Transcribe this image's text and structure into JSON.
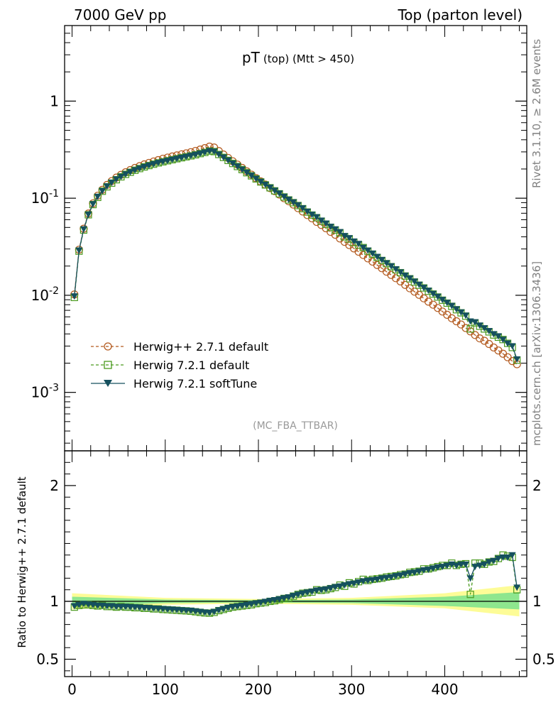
{
  "header": {
    "left_text": "7000 GeV pp",
    "right_text": "Top (parton level)"
  },
  "plot_title": {
    "main": "pT",
    "sub": "(top) (Mtt > 450)"
  },
  "side_labels": {
    "rivet": "Rivet 3.1.10, ≥ 2.6M events",
    "mcplots": "mcplots.cern.ch [arXiv:1306.3436]"
  },
  "analysis_label": "(MC_FBA_TTBAR)",
  "ratio_ylabel": "Ratio to Herwig++ 2.7.1 default",
  "legend": {
    "entries": [
      "Herwig++ 2.7.1 default",
      "Herwig 7.2.1 default",
      "Herwig 7.2.1 softTune"
    ]
  },
  "colors": {
    "herwigpp": "#b35a1f",
    "herwig7": "#4a9a1e",
    "softtune": "#15505e",
    "band_outer": "#fdfc97",
    "band_inner": "#8ee68e"
  },
  "chart_data": [
    {
      "type": "line",
      "yscale": "log",
      "xlim": [
        -8,
        488
      ],
      "ylim": [
        0.00025,
        6
      ],
      "yticks": [
        {
          "value": 1,
          "label": "1"
        },
        {
          "value": 0.1,
          "label": "10^-1"
        },
        {
          "value": 0.01,
          "label": "10^-2"
        },
        {
          "value": 0.001,
          "label": "10^-3"
        }
      ],
      "x": [
        2.5,
        7.5,
        12.5,
        17.5,
        22.5,
        27.5,
        32.5,
        37.5,
        42.5,
        47.5,
        52.5,
        57.5,
        62.5,
        67.5,
        72.5,
        77.5,
        82.5,
        87.5,
        92.5,
        97.5,
        102.5,
        107.5,
        112.5,
        117.5,
        122.5,
        127.5,
        132.5,
        137.5,
        142.5,
        147.5,
        152.5,
        157.5,
        162.5,
        167.5,
        172.5,
        177.5,
        182.5,
        187.5,
        192.5,
        197.5,
        202.5,
        207.5,
        212.5,
        217.5,
        222.5,
        227.5,
        232.5,
        237.5,
        242.5,
        247.5,
        252.5,
        257.5,
        262.5,
        267.5,
        272.5,
        277.5,
        282.5,
        287.5,
        292.5,
        297.5,
        302.5,
        307.5,
        312.5,
        317.5,
        322.5,
        327.5,
        332.5,
        337.5,
        342.5,
        347.5,
        352.5,
        357.5,
        362.5,
        367.5,
        372.5,
        377.5,
        382.5,
        387.5,
        392.5,
        397.5,
        402.5,
        407.5,
        412.5,
        417.5,
        422.5,
        427.5,
        432.5,
        437.5,
        442.5,
        447.5,
        452.5,
        457.5,
        462.5,
        467.5,
        472.5,
        477.5
      ],
      "series": [
        {
          "name": "Herwig++ 2.7.1 default",
          "marker": "open-circle",
          "style": "dashed",
          "values": [
            0.0102,
            0.0295,
            0.0485,
            0.0695,
            0.0885,
            0.106,
            0.122,
            0.137,
            0.15,
            0.163,
            0.174,
            0.185,
            0.195,
            0.205,
            0.214,
            0.223,
            0.231,
            0.239,
            0.247,
            0.255,
            0.262,
            0.269,
            0.276,
            0.283,
            0.29,
            0.298,
            0.307,
            0.317,
            0.328,
            0.34,
            0.333,
            0.306,
            0.282,
            0.26,
            0.24,
            0.222,
            0.205,
            0.189,
            0.175,
            0.161,
            0.149,
            0.138,
            0.127,
            0.118,
            0.109,
            0.1,
            0.093,
            0.086,
            0.079,
            0.073,
            0.067,
            0.062,
            0.057,
            0.053,
            0.049,
            0.045,
            0.042,
            0.0385,
            0.0355,
            0.0329,
            0.0304,
            0.0281,
            0.026,
            0.024,
            0.0222,
            0.0205,
            0.019,
            0.0175,
            0.0162,
            0.015,
            0.0139,
            0.0128,
            0.0118,
            0.0109,
            0.0101,
            0.0093,
            0.0086,
            0.008,
            0.0074,
            0.0068,
            0.0063,
            0.0058,
            0.0054,
            0.005,
            0.0046,
            0.00425,
            0.0039,
            0.0036,
            0.0034,
            0.00315,
            0.0029,
            0.0027,
            0.0025,
            0.0023,
            0.0021,
            0.00195
          ]
        },
        {
          "name": "Herwig 7.2.1 default",
          "marker": "open-square",
          "style": "dashed",
          "values": [
            0.0095,
            0.0285,
            0.047,
            0.0675,
            0.086,
            0.102,
            0.118,
            0.131,
            0.143,
            0.155,
            0.166,
            0.176,
            0.185,
            0.194,
            0.202,
            0.21,
            0.217,
            0.224,
            0.231,
            0.237,
            0.243,
            0.249,
            0.255,
            0.261,
            0.267,
            0.273,
            0.28,
            0.288,
            0.296,
            0.306,
            0.302,
            0.282,
            0.263,
            0.245,
            0.228,
            0.212,
            0.197,
            0.183,
            0.17,
            0.158,
            0.147,
            0.137,
            0.128,
            0.119,
            0.111,
            0.103,
            0.096,
            0.09,
            0.084,
            0.078,
            0.072,
            0.067,
            0.063,
            0.058,
            0.054,
            0.05,
            0.047,
            0.044,
            0.04,
            0.038,
            0.035,
            0.033,
            0.031,
            0.0285,
            0.0265,
            0.0245,
            0.0228,
            0.0212,
            0.0197,
            0.0183,
            0.0171,
            0.0158,
            0.0148,
            0.0137,
            0.0127,
            0.0119,
            0.011,
            0.0103,
            0.0096,
            0.0089,
            0.0083,
            0.0077,
            0.0071,
            0.0066,
            0.0061,
            0.0045,
            0.0052,
            0.0048,
            0.0045,
            0.0042,
            0.0039,
            0.0037,
            0.0035,
            0.0032,
            0.0029,
            0.00215
          ]
        },
        {
          "name": "Herwig 7.2.1 softTune",
          "marker": "filled-triangle-down",
          "style": "solid",
          "values": [
            0.0098,
            0.029,
            0.048,
            0.068,
            0.087,
            0.104,
            0.119,
            0.133,
            0.145,
            0.157,
            0.167,
            0.177,
            0.186,
            0.195,
            0.203,
            0.211,
            0.218,
            0.225,
            0.232,
            0.238,
            0.244,
            0.25,
            0.256,
            0.262,
            0.268,
            0.274,
            0.281,
            0.289,
            0.297,
            0.307,
            0.303,
            0.283,
            0.264,
            0.246,
            0.229,
            0.213,
            0.198,
            0.184,
            0.171,
            0.159,
            0.148,
            0.138,
            0.129,
            0.12,
            0.112,
            0.104,
            0.097,
            0.091,
            0.085,
            0.079,
            0.073,
            0.068,
            0.064,
            0.059,
            0.055,
            0.051,
            0.048,
            0.045,
            0.041,
            0.039,
            0.036,
            0.034,
            0.031,
            0.029,
            0.027,
            0.025,
            0.0232,
            0.0215,
            0.02,
            0.0186,
            0.0173,
            0.016,
            0.015,
            0.0139,
            0.0129,
            0.012,
            0.0112,
            0.0104,
            0.0097,
            0.009,
            0.0084,
            0.0078,
            0.0072,
            0.0067,
            0.0062,
            0.0054,
            0.0053,
            0.0049,
            0.0046,
            0.0043,
            0.004,
            0.0038,
            0.0035,
            0.0032,
            0.003,
            0.0022
          ]
        }
      ]
    },
    {
      "type": "line",
      "ylabel": "Ratio to Herwig++ 2.7.1 default",
      "xlim": [
        -8,
        488
      ],
      "ylim": [
        0.35,
        2.3
      ],
      "xticks": [
        0,
        100,
        200,
        300,
        400
      ],
      "yticks": [
        0.5,
        1,
        2
      ],
      "reference": 1,
      "band_x": [
        0,
        100,
        200,
        300,
        400,
        480
      ],
      "band_outer": [
        [
          0.93,
          1.07
        ],
        [
          0.97,
          1.03
        ],
        [
          0.98,
          1.02
        ],
        [
          0.97,
          1.03
        ],
        [
          0.94,
          1.07
        ],
        [
          0.87,
          1.14
        ]
      ],
      "band_inner": [
        [
          0.96,
          1.04
        ],
        [
          0.985,
          1.015
        ],
        [
          0.99,
          1.01
        ],
        [
          0.985,
          1.015
        ],
        [
          0.96,
          1.04
        ],
        [
          0.93,
          1.08
        ]
      ],
      "x": [
        2.5,
        7.5,
        12.5,
        17.5,
        22.5,
        27.5,
        32.5,
        37.5,
        42.5,
        47.5,
        52.5,
        57.5,
        62.5,
        67.5,
        72.5,
        77.5,
        82.5,
        87.5,
        92.5,
        97.5,
        102.5,
        107.5,
        112.5,
        117.5,
        122.5,
        127.5,
        132.5,
        137.5,
        142.5,
        147.5,
        152.5,
        157.5,
        162.5,
        167.5,
        172.5,
        177.5,
        182.5,
        187.5,
        192.5,
        197.5,
        202.5,
        207.5,
        212.5,
        217.5,
        222.5,
        227.5,
        232.5,
        237.5,
        242.5,
        247.5,
        252.5,
        257.5,
        262.5,
        267.5,
        272.5,
        277.5,
        282.5,
        287.5,
        292.5,
        297.5,
        302.5,
        307.5,
        312.5,
        317.5,
        322.5,
        327.5,
        332.5,
        337.5,
        342.5,
        347.5,
        352.5,
        357.5,
        362.5,
        367.5,
        372.5,
        377.5,
        382.5,
        387.5,
        392.5,
        397.5,
        402.5,
        407.5,
        412.5,
        417.5,
        422.5,
        427.5,
        432.5,
        437.5,
        442.5,
        447.5,
        452.5,
        457.5,
        462.5,
        467.5,
        472.5,
        477.5
      ],
      "series": [
        {
          "name": "Herwig 7.2.1 default",
          "marker": "open-square",
          "style": "dashed",
          "values": [
            0.95,
            0.965,
            0.97,
            0.97,
            0.965,
            0.96,
            0.965,
            0.955,
            0.955,
            0.95,
            0.955,
            0.95,
            0.95,
            0.945,
            0.945,
            0.94,
            0.94,
            0.935,
            0.935,
            0.93,
            0.928,
            0.925,
            0.923,
            0.92,
            0.918,
            0.915,
            0.91,
            0.905,
            0.9,
            0.898,
            0.905,
            0.92,
            0.93,
            0.94,
            0.95,
            0.955,
            0.96,
            0.965,
            0.97,
            0.98,
            0.985,
            0.99,
            1.0,
            1.005,
            1.015,
            1.025,
            1.03,
            1.045,
            1.06,
            1.07,
            1.075,
            1.08,
            1.1,
            1.095,
            1.1,
            1.11,
            1.12,
            1.14,
            1.13,
            1.16,
            1.15,
            1.17,
            1.19,
            1.18,
            1.19,
            1.195,
            1.2,
            1.21,
            1.215,
            1.22,
            1.23,
            1.235,
            1.25,
            1.255,
            1.26,
            1.28,
            1.28,
            1.29,
            1.3,
            1.31,
            1.31,
            1.33,
            1.31,
            1.32,
            1.325,
            1.06,
            1.33,
            1.33,
            1.32,
            1.34,
            1.345,
            1.37,
            1.4,
            1.39,
            1.38,
            1.1
          ]
        },
        {
          "name": "Herwig 7.2.1 softTune",
          "marker": "filled-triangle-down",
          "style": "solid",
          "values": [
            0.96,
            0.97,
            0.98,
            0.975,
            0.97,
            0.965,
            0.965,
            0.96,
            0.96,
            0.955,
            0.955,
            0.955,
            0.952,
            0.95,
            0.948,
            0.945,
            0.943,
            0.94,
            0.938,
            0.935,
            0.932,
            0.93,
            0.927,
            0.925,
            0.922,
            0.92,
            0.915,
            0.91,
            0.905,
            0.902,
            0.91,
            0.925,
            0.935,
            0.945,
            0.953,
            0.958,
            0.963,
            0.97,
            0.977,
            0.985,
            0.99,
            0.998,
            1.005,
            1.012,
            1.02,
            1.028,
            1.036,
            1.048,
            1.06,
            1.07,
            1.078,
            1.085,
            1.095,
            1.1,
            1.105,
            1.115,
            1.125,
            1.13,
            1.14,
            1.15,
            1.155,
            1.165,
            1.175,
            1.18,
            1.185,
            1.19,
            1.2,
            1.205,
            1.21,
            1.22,
            1.225,
            1.235,
            1.245,
            1.25,
            1.26,
            1.27,
            1.275,
            1.285,
            1.295,
            1.3,
            1.31,
            1.32,
            1.31,
            1.32,
            1.32,
            1.2,
            1.3,
            1.31,
            1.32,
            1.34,
            1.35,
            1.37,
            1.38,
            1.38,
            1.4,
            1.12
          ]
        }
      ]
    }
  ]
}
